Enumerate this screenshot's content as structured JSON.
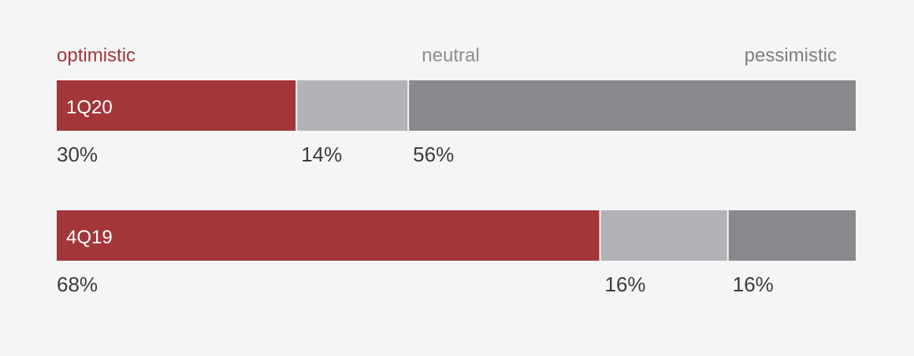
{
  "chart_data": {
    "type": "bar",
    "orientation": "horizontal",
    "stacked": true,
    "normalized_to_percent": true,
    "categories": [
      "1Q20",
      "4Q19"
    ],
    "series": [
      {
        "name": "optimistic",
        "values": [
          30,
          68
        ],
        "color": "#a23638"
      },
      {
        "name": "neutral",
        "values": [
          14,
          16
        ],
        "color": "#b2b3b6"
      },
      {
        "name": "pessimistic",
        "values": [
          56,
          16
        ],
        "color": "#88898c"
      }
    ],
    "value_labels": [
      [
        "30%",
        "14%",
        "56%"
      ],
      [
        "68%",
        "16%",
        "16%"
      ]
    ],
    "legend_placement": "top",
    "legend_text_colors": [
      "#a23638",
      "#8e8e8e",
      "#7f7f7f"
    ],
    "grid": false,
    "xlim": [
      0,
      100
    ]
  }
}
